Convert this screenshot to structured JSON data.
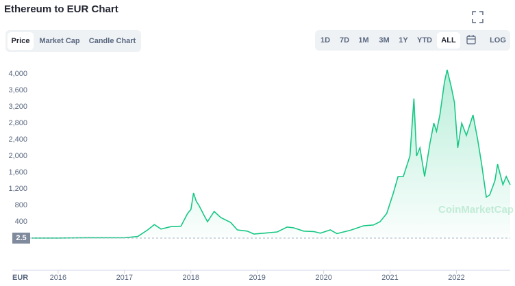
{
  "chart_data": {
    "type": "line",
    "title": "Ethereum to EUR Chart",
    "x": [
      2015.6,
      2016.0,
      2016.5,
      2017.0,
      2017.2,
      2017.35,
      2017.45,
      2017.55,
      2017.7,
      2017.85,
      2017.95,
      2018.0,
      2018.04,
      2018.08,
      2018.12,
      2018.2,
      2018.25,
      2018.35,
      2018.45,
      2018.6,
      2018.7,
      2018.85,
      2018.95,
      2019.1,
      2019.3,
      2019.45,
      2019.55,
      2019.7,
      2019.85,
      2019.95,
      2020.1,
      2020.2,
      2020.4,
      2020.6,
      2020.75,
      2020.85,
      2020.95,
      2021.05,
      2021.12,
      2021.2,
      2021.3,
      2021.36,
      2021.4,
      2021.45,
      2021.52,
      2021.6,
      2021.66,
      2021.7,
      2021.75,
      2021.82,
      2021.86,
      2021.92,
      2021.97,
      2022.02,
      2022.08,
      2022.15,
      2022.25,
      2022.32,
      2022.38,
      2022.45,
      2022.5,
      2022.58,
      2022.62,
      2022.7,
      2022.75,
      2022.81
    ],
    "series": [
      {
        "name": "Price",
        "color": "#16c784",
        "values": [
          1,
          1,
          10,
          8,
          40,
          200,
          330,
          220,
          280,
          290,
          600,
          700,
          1100,
          900,
          800,
          550,
          400,
          650,
          500,
          380,
          200,
          170,
          100,
          120,
          150,
          270,
          250,
          170,
          160,
          120,
          200,
          110,
          190,
          300,
          320,
          400,
          600,
          1100,
          1500,
          1500,
          2000,
          3400,
          2000,
          2200,
          1500,
          2300,
          2800,
          2600,
          3000,
          3800,
          4100,
          3700,
          3300,
          2200,
          2800,
          2500,
          3000,
          2400,
          1800,
          1000,
          1050,
          1400,
          1800,
          1300,
          1500,
          1300
        ]
      }
    ],
    "xlim": [
      2015.31,
      2022.81
    ],
    "xticks": [
      2016,
      2017,
      2018,
      2019,
      2020,
      2021,
      2022
    ],
    "ylim": [
      -100,
      4200
    ],
    "yticks": [
      400,
      800,
      {
        "value": 1200,
        "label": "1,200"
      },
      {
        "value": 1600,
        "label": "1,600"
      },
      {
        "value": 2000,
        "label": "2,000"
      },
      {
        "value": 2400,
        "label": "2,400"
      },
      {
        "value": 2800,
        "label": "2,800"
      },
      {
        "value": 3200,
        "label": "3,200"
      },
      {
        "value": 3600,
        "label": "3,600"
      },
      {
        "value": 4000,
        "label": "4,000"
      }
    ],
    "y_marker": "2.5",
    "currency": "EUR",
    "watermark": "CoinMarketCap",
    "grid": false
  },
  "tabs": [
    "Price",
    "Market Cap",
    "Candle Chart"
  ],
  "ranges": [
    "1D",
    "7D",
    "1M",
    "3M",
    "1Y",
    "YTD",
    "ALL"
  ],
  "log": "LOG"
}
